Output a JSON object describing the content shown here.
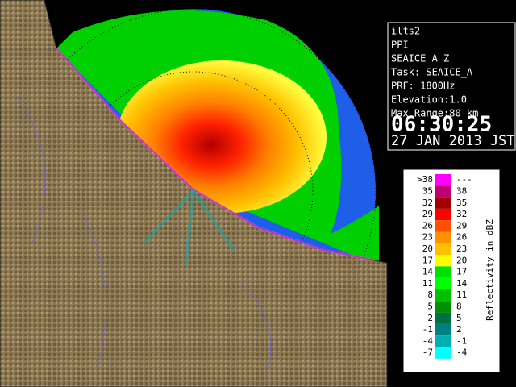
{
  "info": {
    "lines": [
      "ilts2",
      "PPI",
      "SEAICE_A_Z",
      "Task: SEAICE_A",
      "PRF: 1800Hz",
      "Elevation:1.0",
      "Max Range:80 km"
    ],
    "time": "06:30:25",
    "date": "27 JAN 2013 JST"
  },
  "legend": {
    "title": "Reflectivity in dBZ",
    "rows": [
      {
        "low": ">38",
        "high": "---",
        "color": "#ff00ff"
      },
      {
        "low": "35",
        "high": "38",
        "color": "#c00070"
      },
      {
        "low": "32",
        "high": "35",
        "color": "#a00000"
      },
      {
        "low": "29",
        "high": "32",
        "color": "#ff0000"
      },
      {
        "low": "26",
        "high": "29",
        "color": "#ff5000"
      },
      {
        "low": "23",
        "high": "26",
        "color": "#ff9000"
      },
      {
        "low": "20",
        "high": "23",
        "color": "#ffc000"
      },
      {
        "low": "17",
        "high": "20",
        "color": "#ffff00"
      },
      {
        "low": "14",
        "high": "17",
        "color": "#00e000"
      },
      {
        "low": "11",
        "high": "14",
        "color": "#00ff00"
      },
      {
        "low": "8",
        "high": "11",
        "color": "#00c000"
      },
      {
        "low": "5",
        "high": "8",
        "color": "#009000"
      },
      {
        "low": "2",
        "high": "5",
        "color": "#007040"
      },
      {
        "low": "-1",
        "high": "2",
        "color": "#008080"
      },
      {
        "low": "-4",
        "high": "-1",
        "color": "#00b0b0"
      },
      {
        "low": "-7",
        "high": "-4",
        "color": "#00ffff"
      }
    ]
  }
}
